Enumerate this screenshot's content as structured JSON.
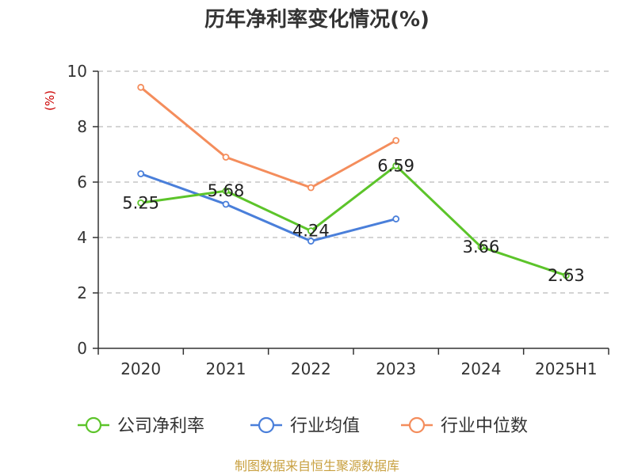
{
  "chart_data": {
    "type": "line",
    "title": "历年净利率变化情况(%)",
    "ylabel": "(%)",
    "ylim": [
      0,
      10
    ],
    "yticks": [
      0,
      2,
      4,
      6,
      8,
      10
    ],
    "categories": [
      "2020",
      "2021",
      "2022",
      "2023",
      "2024",
      "2025H1"
    ],
    "grid": true,
    "legend_position": "bottom",
    "series": [
      {
        "name": "公司净利率",
        "color": "#5cc42a",
        "values": [
          5.25,
          5.68,
          4.24,
          6.59,
          3.66,
          2.63
        ],
        "labels": [
          "5.25",
          "5.68",
          "4.24",
          "6.59",
          "3.66",
          "2.63"
        ]
      },
      {
        "name": "行业均值",
        "color": "#4a7fda",
        "values": [
          6.3,
          5.2,
          3.87,
          4.67,
          null,
          null
        ]
      },
      {
        "name": "行业中位数",
        "color": "#f48d5c",
        "values": [
          9.42,
          6.9,
          5.8,
          7.5,
          null,
          null
        ]
      }
    ],
    "source": "制图数据来自恒生聚源数据库"
  }
}
